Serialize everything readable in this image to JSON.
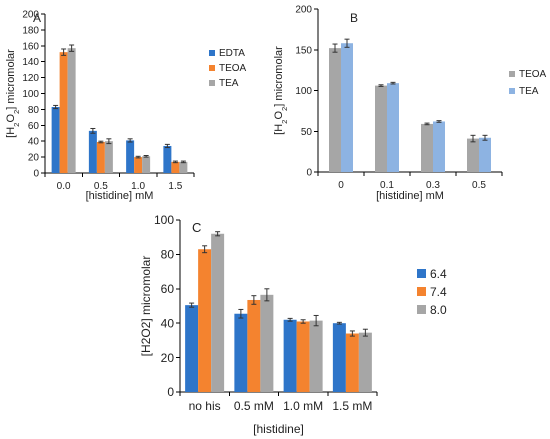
{
  "colors": {
    "edta": "#2e75c9",
    "teoa": "#f4832f",
    "tea_gray": "#a6a6a6",
    "tea_blue": "#8db3e2",
    "ph64": "#2e75c9",
    "ph74": "#f4832f",
    "ph80": "#a6a6a6"
  },
  "chart_data": [
    {
      "type": "bar",
      "panel_label": "A",
      "title": "",
      "xlabel": "[histidine] mM",
      "ylabel_parts": [
        "[H",
        "2",
        "O",
        "2",
        "] micromolar"
      ],
      "categories": [
        "0.0",
        "0.5",
        "1.0",
        "1.5"
      ],
      "ylim": [
        0,
        200
      ],
      "yticks": [
        "0",
        "20",
        "40",
        "60",
        "80",
        "100",
        "120",
        "140",
        "160",
        "180",
        "200"
      ],
      "legend_position": "right",
      "grid": false,
      "series": [
        {
          "name": "EDTA",
          "color_key": "edta",
          "values": [
            83,
            53,
            41,
            34
          ],
          "errors": [
            2,
            3,
            2,
            2
          ]
        },
        {
          "name": "TEOA",
          "color_key": "teoa",
          "values": [
            152,
            39,
            20,
            14
          ],
          "errors": [
            4,
            1,
            1,
            1
          ]
        },
        {
          "name": "TEA",
          "color_key": "tea_gray",
          "values": [
            157,
            40,
            21,
            14
          ],
          "errors": [
            4,
            3,
            1,
            1
          ]
        }
      ]
    },
    {
      "type": "bar",
      "panel_label": "B",
      "title": "",
      "xlabel": "[histidine] mM",
      "ylabel_parts": [
        "[H",
        "2",
        "O",
        "2",
        "] micromolar"
      ],
      "categories": [
        "0",
        "0.1",
        "0.3",
        "0.5"
      ],
      "ylim": [
        0,
        200
      ],
      "yticks": [
        "0",
        "50",
        "100",
        "150",
        "200"
      ],
      "legend_position": "right",
      "grid": false,
      "series": [
        {
          "name": "TEOA",
          "color_key": "tea_gray",
          "values": [
            152,
            106,
            59,
            41
          ],
          "errors": [
            5,
            1,
            1,
            4
          ]
        },
        {
          "name": "TEA",
          "color_key": "tea_blue",
          "values": [
            158,
            109,
            62,
            42
          ],
          "errors": [
            5,
            1,
            1,
            3
          ]
        }
      ]
    },
    {
      "type": "bar",
      "panel_label": "C",
      "title": "",
      "xlabel": "[histidine]",
      "ylabel_parts": [
        "[H2O2] micromolar"
      ],
      "categories": [
        "no his",
        "0.5 mM",
        "1.0 mM",
        "1.5 mM"
      ],
      "ylim": [
        0,
        100
      ],
      "yticks": [
        "0",
        "20",
        "40",
        "60",
        "80",
        "100"
      ],
      "legend_position": "right",
      "grid": false,
      "series": [
        {
          "name": "6.4",
          "color_key": "ph64",
          "values": [
            50.5,
            45.5,
            42,
            40
          ],
          "errors": [
            1.2,
            2.5,
            0.8,
            0.5
          ]
        },
        {
          "name": "7.4",
          "color_key": "ph74",
          "values": [
            83,
            53.5,
            41,
            34
          ],
          "errors": [
            2,
            2.5,
            1,
            1.5
          ]
        },
        {
          "name": "8.0",
          "color_key": "ph80",
          "values": [
            92,
            56.5,
            41.5,
            34.5
          ],
          "errors": [
            1.2,
            3.5,
            3,
            2
          ]
        }
      ]
    }
  ]
}
